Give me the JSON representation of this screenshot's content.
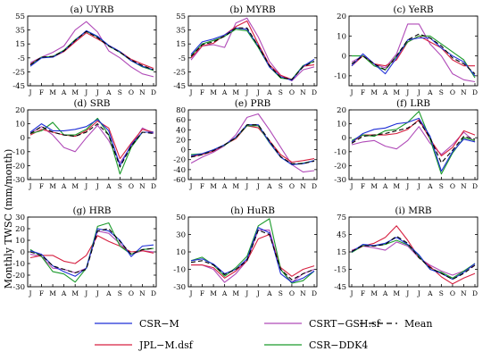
{
  "ylabel": "Monthly TWSC (mm/month)",
  "months": [
    "J",
    "F",
    "M",
    "A",
    "M",
    "J",
    "J",
    "A",
    "S",
    "O",
    "N",
    "D"
  ],
  "legend": {
    "entries": [
      {
        "label": "CSR−M",
        "color": "#1f2fd6",
        "dash": false
      },
      {
        "label": "CSRT−GSH.sf",
        "color": "#b04ab8",
        "dash": false
      },
      {
        "label": "Mean",
        "color": "#000000",
        "dash": true
      },
      {
        "label": "JPL−M.dsf",
        "color": "#d62040",
        "dash": false
      },
      {
        "label": "CSR−DDK4",
        "color": "#1a9a2a",
        "dash": false
      }
    ]
  },
  "chart_data": [
    {
      "type": "line",
      "title": "(a) UYRB",
      "ylim": [
        -45,
        55
      ],
      "yticks": [
        55,
        35,
        15,
        -5,
        -25,
        -45
      ],
      "series": [
        {
          "name": "CSR−M",
          "values": [
            -17,
            -5,
            -4,
            5,
            20,
            34,
            26,
            13,
            4,
            -9,
            -17,
            -22
          ]
        },
        {
          "name": "CSRT−GSH.sf",
          "values": [
            -12,
            -4,
            3,
            12,
            35,
            47,
            32,
            5,
            -5,
            -18,
            -28,
            -32
          ]
        },
        {
          "name": "Mean",
          "values": [
            -15,
            -4,
            -3,
            5,
            20,
            33,
            24,
            12,
            3,
            -8,
            -16,
            -22
          ]
        },
        {
          "name": "JPL−M.dsf",
          "values": [
            -14,
            -4,
            -4,
            4,
            18,
            31,
            22,
            13,
            4,
            -7,
            -14,
            -20
          ]
        },
        {
          "name": "CSR−DDK4",
          "values": [
            -15,
            -4,
            -3,
            6,
            21,
            33,
            25,
            12,
            3,
            -9,
            -18,
            -23
          ]
        }
      ]
    },
    {
      "type": "line",
      "title": "(b) MYRB",
      "ylim": [
        -45,
        55
      ],
      "yticks": [
        55,
        35,
        15,
        -5,
        -25,
        -45
      ],
      "series": [
        {
          "name": "CSR−M",
          "values": [
            0,
            18,
            22,
            28,
            38,
            36,
            12,
            -18,
            -32,
            -37,
            -17,
            -7
          ]
        },
        {
          "name": "CSRT−GSH.sf",
          "values": [
            -8,
            12,
            14,
            10,
            45,
            52,
            25,
            -10,
            -30,
            -38,
            -22,
            -18
          ]
        },
        {
          "name": "Mean",
          "values": [
            -3,
            14,
            18,
            26,
            38,
            38,
            12,
            -16,
            -33,
            -36,
            -18,
            -10
          ]
        },
        {
          "name": "JPL−M.dsf",
          "values": [
            -5,
            12,
            16,
            28,
            40,
            48,
            15,
            -15,
            -30,
            -36,
            -17,
            -15
          ]
        },
        {
          "name": "CSR−DDK4",
          "values": [
            -2,
            15,
            20,
            26,
            36,
            34,
            10,
            -18,
            -34,
            -36,
            -16,
            -10
          ]
        }
      ]
    },
    {
      "type": "line",
      "title": "(c) YeRB",
      "ylim": [
        -15,
        20
      ],
      "yticks": [
        20,
        10,
        0,
        -10
      ],
      "series": [
        {
          "name": "CSR−M",
          "values": [
            -5,
            1,
            -4,
            -9,
            -1,
            8,
            9,
            9,
            4,
            0,
            -3,
            -10
          ]
        },
        {
          "name": "CSRT−GSH.sf",
          "values": [
            -3,
            0,
            -4,
            -6,
            1,
            16,
            16,
            6,
            0,
            -9,
            -12,
            -13
          ]
        },
        {
          "name": "Mean",
          "values": [
            -4,
            0,
            -4,
            -7,
            0,
            8,
            11,
            9,
            5,
            -1,
            -4,
            -9
          ]
        },
        {
          "name": "JPL−M.dsf",
          "values": [
            -5,
            0,
            -4,
            -5,
            -2,
            7,
            10,
            7,
            4,
            -2,
            -5,
            -5
          ]
        },
        {
          "name": "CSR−DDK4",
          "values": [
            0,
            0,
            -5,
            -7,
            0,
            7,
            10,
            10,
            6,
            2,
            -2,
            -11
          ]
        }
      ]
    },
    {
      "type": "line",
      "title": "(d) SRB",
      "ylim": [
        -30,
        20
      ],
      "yticks": [
        20,
        10,
        0,
        -10,
        -20,
        -30
      ],
      "series": [
        {
          "name": "CSR−M",
          "values": [
            4,
            10,
            5,
            5,
            6,
            8,
            13,
            5,
            -20,
            -5,
            4,
            4
          ]
        },
        {
          "name": "CSRT−GSH.sf",
          "values": [
            3,
            8,
            2,
            -7,
            -10,
            0,
            9,
            -2,
            -18,
            -6,
            7,
            3
          ]
        },
        {
          "name": "Mean",
          "values": [
            3,
            8,
            4,
            2,
            1,
            4,
            10,
            2,
            -21,
            -6,
            4,
            3
          ]
        },
        {
          "name": "JPL−M.dsf",
          "values": [
            2,
            6,
            4,
            2,
            1,
            5,
            12,
            7,
            -15,
            -4,
            6,
            4
          ]
        },
        {
          "name": "CSR−DDK4",
          "values": [
            3,
            5,
            11,
            2,
            2,
            6,
            14,
            2,
            -26,
            -7,
            4,
            4
          ]
        }
      ]
    },
    {
      "type": "line",
      "title": "(e) PRB",
      "ylim": [
        -60,
        80
      ],
      "yticks": [
        80,
        60,
        40,
        20,
        0,
        -20,
        -40,
        -60
      ],
      "series": [
        {
          "name": "CSR−M",
          "values": [
            -12,
            -8,
            0,
            10,
            25,
            50,
            50,
            15,
            -15,
            -30,
            -28,
            -22
          ]
        },
        {
          "name": "CSRT−GSH.sf",
          "values": [
            -27,
            -15,
            -5,
            8,
            30,
            65,
            72,
            40,
            5,
            -30,
            -45,
            -42
          ]
        },
        {
          "name": "Mean",
          "values": [
            -15,
            -10,
            -2,
            10,
            24,
            50,
            50,
            18,
            -14,
            -28,
            -28,
            -23
          ]
        },
        {
          "name": "JPL−M.dsf",
          "values": [
            -14,
            -10,
            -3,
            10,
            22,
            48,
            44,
            18,
            -10,
            -25,
            -22,
            -18
          ]
        },
        {
          "name": "CSR−DDK4",
          "values": [
            -10,
            -8,
            0,
            9,
            24,
            48,
            48,
            14,
            -15,
            -30,
            -27,
            -22
          ]
        }
      ]
    },
    {
      "type": "line",
      "title": "(f) LRB",
      "ylim": [
        -30,
        20
      ],
      "yticks": [
        20,
        10,
        0,
        -10,
        -20,
        -30
      ],
      "series": [
        {
          "name": "CSR−M",
          "values": [
            -3,
            3,
            6,
            7,
            10,
            11,
            14,
            1,
            -24,
            -10,
            -1,
            -3
          ]
        },
        {
          "name": "CSRT−GSH.sf",
          "values": [
            -5,
            -3,
            -2,
            -6,
            -8,
            -2,
            8,
            -4,
            -12,
            -5,
            4,
            -3
          ]
        },
        {
          "name": "Mean",
          "values": [
            -4,
            1,
            2,
            3,
            5,
            7,
            12,
            0,
            -18,
            -9,
            1,
            -1
          ]
        },
        {
          "name": "JPL−M.dsf",
          "values": [
            -3,
            2,
            2,
            2,
            3,
            6,
            13,
            -1,
            -13,
            -7,
            5,
            2
          ]
        },
        {
          "name": "CSR−DDK4",
          "values": [
            -2,
            2,
            1,
            5,
            6,
            11,
            19,
            -1,
            -26,
            -11,
            0,
            -2
          ]
        }
      ]
    },
    {
      "type": "line",
      "title": "(g) HRB",
      "ylim": [
        -30,
        30
      ],
      "yticks": [
        30,
        20,
        10,
        0,
        -10,
        -20,
        -30
      ],
      "series": [
        {
          "name": "CSR−M",
          "values": [
            1,
            -2,
            -12,
            -17,
            -21,
            -14,
            20,
            18,
            10,
            -4,
            5,
            6
          ]
        },
        {
          "name": "CSRT−GSH.sf",
          "values": [
            -2,
            -4,
            -14,
            -15,
            -18,
            -14,
            18,
            16,
            7,
            -2,
            1,
            0
          ]
        },
        {
          "name": "Mean",
          "values": [
            0,
            -3,
            -12,
            -15,
            -18,
            -15,
            18,
            20,
            9,
            -2,
            2,
            3
          ]
        },
        {
          "name": "JPL−M.dsf",
          "values": [
            -5,
            -3,
            -3,
            -8,
            -10,
            -3,
            14,
            9,
            5,
            0,
            1,
            -1
          ]
        },
        {
          "name": "CSR−DDK4",
          "values": [
            2,
            -4,
            -17,
            -19,
            -26,
            -14,
            22,
            25,
            5,
            -2,
            2,
            3
          ]
        }
      ]
    },
    {
      "type": "line",
      "title": "(h) HuRB",
      "ylim": [
        -30,
        50
      ],
      "yticks": [
        50,
        30,
        10,
        -10,
        -30
      ],
      "series": [
        {
          "name": "CSR−M",
          "values": [
            0,
            2,
            -4,
            -15,
            -10,
            2,
            38,
            32,
            -15,
            -25,
            -20,
            -12
          ]
        },
        {
          "name": "CSRT−GSH.sf",
          "values": [
            -5,
            -5,
            -10,
            -25,
            -15,
            0,
            35,
            35,
            -10,
            -25,
            -15,
            -10
          ]
        },
        {
          "name": "Mean",
          "values": [
            -2,
            0,
            -5,
            -16,
            -10,
            0,
            35,
            30,
            -10,
            -22,
            -15,
            -10
          ]
        },
        {
          "name": "JPL−M.dsf",
          "values": [
            -5,
            -5,
            -8,
            -20,
            -12,
            0,
            25,
            30,
            -8,
            -18,
            -10,
            -6
          ]
        },
        {
          "name": "CSR−DDK4",
          "values": [
            0,
            4,
            -5,
            -18,
            -8,
            5,
            40,
            48,
            -10,
            -26,
            -23,
            -12
          ]
        }
      ]
    },
    {
      "type": "line",
      "title": "(i) MRB",
      "ylim": [
        -45,
        75
      ],
      "yticks": [
        75,
        45,
        15,
        -15,
        -45
      ],
      "series": [
        {
          "name": "CSR−M",
          "values": [
            15,
            28,
            26,
            30,
            40,
            28,
            10,
            -15,
            -22,
            -32,
            -20,
            -5
          ]
        },
        {
          "name": "CSRT−GSH.sf",
          "values": [
            18,
            25,
            22,
            18,
            32,
            25,
            5,
            -8,
            -18,
            -25,
            -18,
            -8
          ]
        },
        {
          "name": "Mean",
          "values": [
            16,
            26,
            25,
            28,
            42,
            30,
            5,
            -12,
            -22,
            -32,
            -22,
            -8
          ]
        },
        {
          "name": "JPL−M.dsf",
          "values": [
            15,
            25,
            30,
            40,
            60,
            35,
            5,
            -10,
            -28,
            -40,
            -30,
            -22
          ]
        },
        {
          "name": "CSR−DDK4",
          "values": [
            14,
            26,
            26,
            28,
            35,
            27,
            8,
            -15,
            -20,
            -30,
            -18,
            -5
          ]
        }
      ]
    }
  ]
}
